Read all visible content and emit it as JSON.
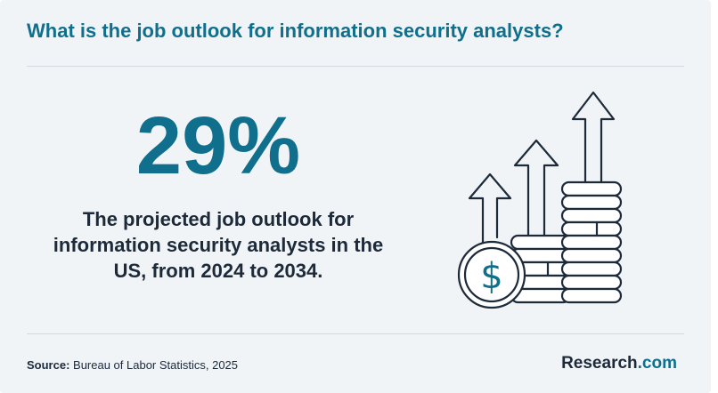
{
  "header": {
    "title": "What is the job outlook for information security analysts?"
  },
  "stat": {
    "value": "29%",
    "description_lines": [
      "The projected job outlook for",
      "information security analysts in the",
      "US, from 2024 to 2034."
    ]
  },
  "illustration": {
    "icons": [
      "dollar-coin-icon",
      "coin-stack-icon",
      "up-arrow-icon"
    ],
    "currency_symbol": "$"
  },
  "footer": {
    "source_label": "Source:",
    "source_text": " Bureau of Labor Statistics, 2025",
    "brand_main": "Research",
    "brand_suffix": ".com"
  },
  "colors": {
    "accent": "#0f6f8c",
    "text": "#1d2a3a",
    "background": "#f1f4f6",
    "divider": "#d3dbe0"
  }
}
